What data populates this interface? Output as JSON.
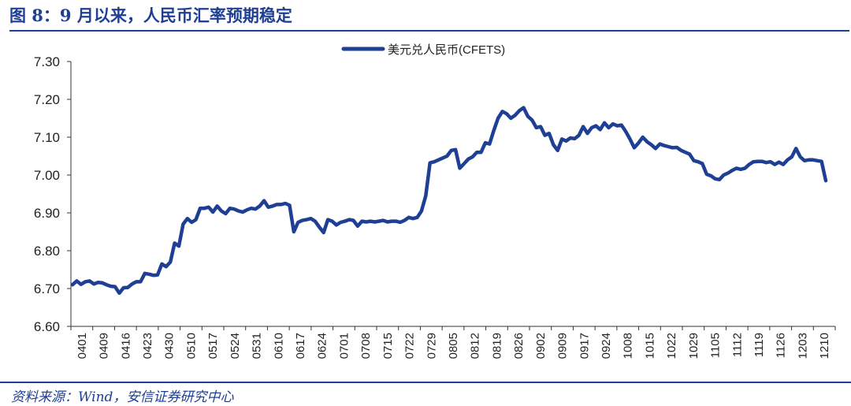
{
  "header": {
    "title": "图 8：9 月以来，人民币汇率预期稳定"
  },
  "footer": {
    "source": "资料来源：Wind，安信证券研究中心"
  },
  "colors": {
    "accent": "#1f3f95",
    "line": "#1f3f95"
  },
  "chart_data": {
    "type": "line",
    "title": "",
    "xlabel": "",
    "ylabel": "",
    "ylim": [
      6.6,
      7.3
    ],
    "yticks": [
      "6.60",
      "6.70",
      "6.80",
      "6.90",
      "7.00",
      "7.10",
      "7.20",
      "7.30"
    ],
    "grid": false,
    "legend_position": "top-center",
    "x_tick_labels": [
      "0401",
      "0409",
      "0416",
      "0423",
      "0430",
      "0510",
      "0517",
      "0524",
      "0531",
      "0610",
      "0617",
      "0624",
      "0701",
      "0708",
      "0715",
      "0722",
      "0729",
      "0805",
      "0812",
      "0819",
      "0826",
      "0902",
      "0909",
      "0917",
      "0924",
      "1008",
      "1015",
      "1022",
      "1029",
      "1105",
      "1112",
      "1119",
      "1126",
      "1203",
      "1210"
    ],
    "series": [
      {
        "name": "美元兑人民币(CFETS)",
        "values": [
          6.71,
          6.72,
          6.711,
          6.718,
          6.72,
          6.712,
          6.716,
          6.715,
          6.71,
          6.706,
          6.705,
          6.688,
          6.702,
          6.703,
          6.712,
          6.718,
          6.718,
          6.74,
          6.738,
          6.735,
          6.736,
          6.765,
          6.758,
          6.77,
          6.82,
          6.812,
          6.87,
          6.885,
          6.875,
          6.882,
          6.912,
          6.912,
          6.915,
          6.902,
          6.918,
          6.905,
          6.898,
          6.912,
          6.91,
          6.905,
          6.902,
          6.908,
          6.912,
          6.91,
          6.918,
          6.932,
          6.915,
          6.918,
          6.922,
          6.922,
          6.925,
          6.92,
          6.85,
          6.875,
          6.88,
          6.882,
          6.885,
          6.878,
          6.862,
          6.848,
          6.882,
          6.878,
          6.868,
          6.875,
          6.878,
          6.882,
          6.88,
          6.865,
          6.878,
          6.876,
          6.878,
          6.876,
          6.878,
          6.88,
          6.876,
          6.878,
          6.878,
          6.875,
          6.88,
          6.888,
          6.885,
          6.888,
          6.905,
          6.945,
          7.032,
          7.035,
          7.04,
          7.045,
          7.05,
          7.065,
          7.067,
          7.018,
          7.03,
          7.042,
          7.048,
          7.06,
          7.06,
          7.085,
          7.082,
          7.118,
          7.15,
          7.168,
          7.162,
          7.15,
          7.158,
          7.17,
          7.178,
          7.155,
          7.145,
          7.125,
          7.128,
          7.105,
          7.11,
          7.08,
          7.065,
          7.095,
          7.09,
          7.098,
          7.096,
          7.105,
          7.128,
          7.11,
          7.125,
          7.13,
          7.12,
          7.138,
          7.125,
          7.135,
          7.13,
          7.132,
          7.115,
          7.095,
          7.072,
          7.085,
          7.1,
          7.088,
          7.08,
          7.07,
          7.082,
          7.078,
          7.075,
          7.072,
          7.073,
          7.065,
          7.06,
          7.055,
          7.038,
          7.035,
          7.03,
          7.002,
          6.998,
          6.99,
          6.988,
          7.0,
          7.005,
          7.012,
          7.018,
          7.015,
          7.018,
          7.028,
          7.035,
          7.036,
          7.036,
          7.033,
          7.035,
          7.028,
          7.034,
          7.028,
          7.04,
          7.048,
          7.07,
          7.048,
          7.038,
          7.04,
          7.04,
          7.038,
          7.036,
          6.985
        ]
      }
    ]
  }
}
